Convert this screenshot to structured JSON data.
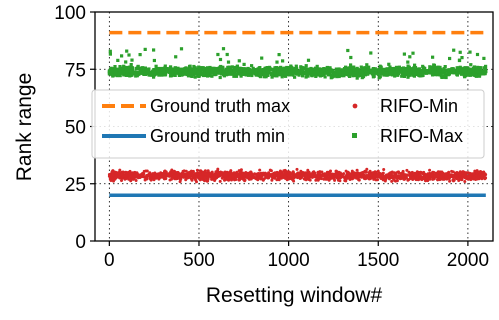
{
  "chart_data": {
    "type": "scatter",
    "xlabel": "Resetting window#",
    "ylabel": "Rank range",
    "xlim": [
      -80,
      2140
    ],
    "ylim": [
      0,
      100
    ],
    "xticks": [
      0,
      500,
      1000,
      1500,
      2000
    ],
    "yticks": [
      0,
      25,
      50,
      75,
      100
    ],
    "grid": true,
    "legend_position": "center",
    "series": [
      {
        "name": "Ground truth max",
        "kind": "dashed-line",
        "color": "#ff7f0e",
        "x": [
          0,
          2100
        ],
        "y": [
          91,
          91
        ]
      },
      {
        "name": "Ground truth min",
        "kind": "solid-line",
        "color": "#1f77b4",
        "x": [
          0,
          2100
        ],
        "y": [
          20,
          20
        ]
      },
      {
        "name": "RIFO-Min",
        "kind": "scatter",
        "color": "#d62728",
        "x_range": [
          0,
          2100
        ],
        "y_range": [
          23,
          34
        ],
        "y_center": 28.5
      },
      {
        "name": "RIFO-Max",
        "kind": "scatter",
        "color": "#2ca02c",
        "x_range": [
          0,
          2100
        ],
        "y_range": [
          67,
          84
        ],
        "y_center": 74
      }
    ],
    "legend": [
      {
        "label": "Ground truth max",
        "series": 0
      },
      {
        "label": "RIFO-Min",
        "series": 2
      },
      {
        "label": "Ground truth min",
        "series": 1
      },
      {
        "label": "RIFO-Max",
        "series": 3
      }
    ]
  }
}
